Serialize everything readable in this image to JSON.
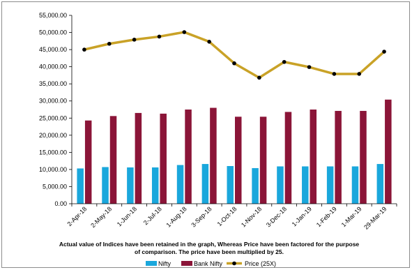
{
  "chart_data": {
    "type": "bar",
    "categories": [
      "2-Apr-18",
      "2-May-18",
      "1-Jun-18",
      "2-Jul-18",
      "1-Aug-18",
      "3-Sep-18",
      "1-Oct-18",
      "1-Nov-18",
      "3-Dec-18",
      "1-Jan-19",
      "1-Feb-19",
      "1-Mar-19",
      "29-Mar-19"
    ],
    "series": [
      {
        "name": "Nifty",
        "type": "bar",
        "color": "#1aa7dc",
        "values": [
          10300,
          10700,
          10600,
          10600,
          11300,
          11600,
          11000,
          10400,
          10900,
          10900,
          10900,
          10900,
          11600
        ]
      },
      {
        "name": "Bank Nifty",
        "type": "bar",
        "color": "#8b1538",
        "values": [
          24300,
          25600,
          26500,
          26300,
          27500,
          28000,
          25400,
          25400,
          26800,
          27500,
          27100,
          27100,
          30400
        ]
      },
      {
        "name": "Price (25X)",
        "type": "line",
        "color": "#c9a227",
        "marker_color": "#000000",
        "values": [
          45000,
          46700,
          47900,
          48800,
          50100,
          47300,
          41000,
          36800,
          41400,
          39900,
          37900,
          37900,
          44400
        ]
      }
    ],
    "yticks": [
      "55,000.00",
      "50,000.00",
      "45,000.00",
      "40,000.00",
      "35,000.00",
      "30,000.00",
      "25,000.00",
      "20,000.00",
      "15,000.00",
      "10,000.00",
      "5,000.00",
      "0.00"
    ],
    "ylim": [
      0,
      55000
    ],
    "ystep": 5000,
    "grid": false,
    "legend": "bottom",
    "annotation_lines": [
      "Actual value  of Indices have been retained in the graph, Whereas Price have been factored for the purpose",
      "of comparison. The price have been multiplied by 25."
    ]
  }
}
